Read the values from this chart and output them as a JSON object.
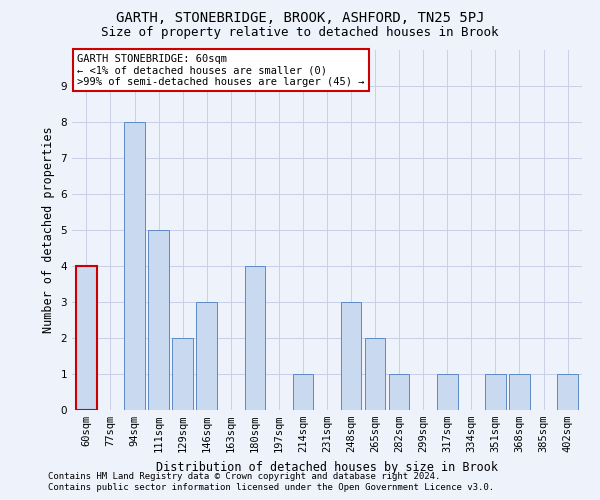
{
  "title1": "GARTH, STONEBRIDGE, BROOK, ASHFORD, TN25 5PJ",
  "title2": "Size of property relative to detached houses in Brook",
  "xlabel": "Distribution of detached houses by size in Brook",
  "ylabel": "Number of detached properties",
  "categories": [
    "60sqm",
    "77sqm",
    "94sqm",
    "111sqm",
    "129sqm",
    "146sqm",
    "163sqm",
    "180sqm",
    "197sqm",
    "214sqm",
    "231sqm",
    "248sqm",
    "265sqm",
    "282sqm",
    "299sqm",
    "317sqm",
    "334sqm",
    "351sqm",
    "368sqm",
    "385sqm",
    "402sqm"
  ],
  "values": [
    4,
    0,
    8,
    5,
    2,
    3,
    0,
    4,
    0,
    1,
    0,
    3,
    2,
    1,
    0,
    1,
    0,
    1,
    1,
    0,
    1
  ],
  "bar_color": "#c9d9f0",
  "bar_edge_color": "#5a8ac6",
  "highlight_index": 0,
  "annotation_title": "GARTH STONEBRIDGE: 60sqm",
  "annotation_line1": "← <1% of detached houses are smaller (0)",
  "annotation_line2": ">99% of semi-detached houses are larger (45) →",
  "ylim": [
    0,
    10
  ],
  "yticks": [
    0,
    1,
    2,
    3,
    4,
    5,
    6,
    7,
    8,
    9
  ],
  "footer1": "Contains HM Land Registry data © Crown copyright and database right 2024.",
  "footer2": "Contains public sector information licensed under the Open Government Licence v3.0.",
  "background_color": "#eef2fb",
  "annotation_box_color": "#ffffff",
  "annotation_border_color": "#cc0000",
  "grid_color": "#c8cfe8",
  "title1_fontsize": 10,
  "title2_fontsize": 9,
  "axis_label_fontsize": 8.5,
  "tick_fontsize": 7.5,
  "annotation_fontsize": 7.5,
  "footer_fontsize": 6.5
}
